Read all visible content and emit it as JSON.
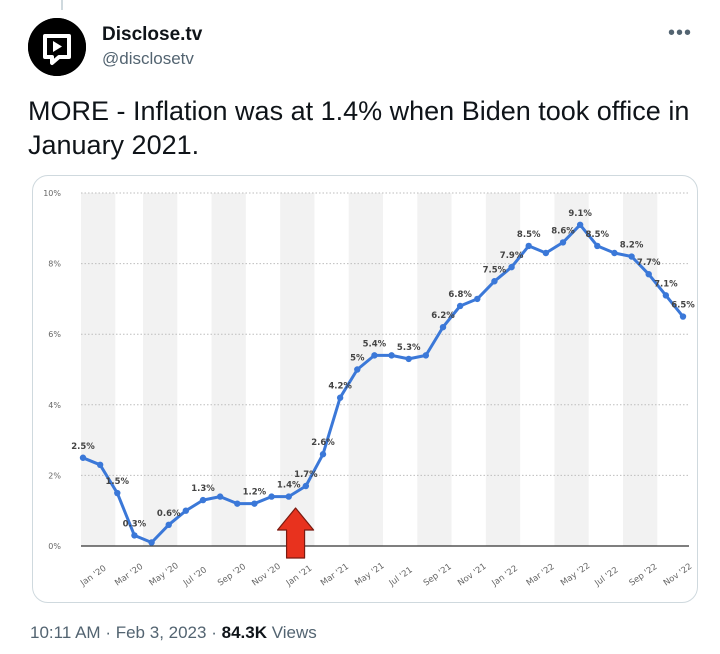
{
  "author": {
    "name": "Disclose.tv",
    "handle": "@disclosetv"
  },
  "tweet": {
    "text": "MORE - Inflation was at 1.4% when Biden took office in January 2021."
  },
  "meta": {
    "time": "10:11 AM",
    "separator1": "·",
    "date": "Feb 3, 2023",
    "separator2": "·",
    "views_count": "84.3K",
    "views_label": "Views"
  },
  "icons": {
    "more": "more-options-icon",
    "avatar": "disclose-logo-icon",
    "arrow": "red-arrow-up-icon"
  },
  "colors": {
    "line": "#3b78d8",
    "arrow": "#e8321e",
    "shade": "#f2f2f2",
    "text_secondary": "#536471"
  },
  "chart_data": {
    "type": "line",
    "ylim": [
      0,
      10
    ],
    "y_ticks": [
      "0%",
      "2%",
      "4%",
      "6%",
      "8%",
      "10%"
    ],
    "x_tick_labels": [
      "Jan '20",
      "Mar '20",
      "May '20",
      "Jul '20",
      "Sep '20",
      "Nov '20",
      "Jan '21",
      "Mar '21",
      "May '21",
      "Jul '21",
      "Sep '21",
      "Nov '21",
      "Jan '22",
      "Mar '22",
      "May '22",
      "Jul '22",
      "Sep '22",
      "Nov '22"
    ],
    "x": [
      "Jan '20",
      "Feb '20",
      "Mar '20",
      "Apr '20",
      "May '20",
      "Jun '20",
      "Jul '20",
      "Aug '20",
      "Sep '20",
      "Oct '20",
      "Nov '20",
      "Dec '20",
      "Jan '21",
      "Feb '21",
      "Mar '21",
      "Apr '21",
      "May '21",
      "Jun '21",
      "Jul '21",
      "Aug '21",
      "Sep '21",
      "Oct '21",
      "Nov '21",
      "Dec '21",
      "Jan '22",
      "Feb '22",
      "Mar '22",
      "Apr '22",
      "May '22",
      "Jun '22",
      "Jul '22",
      "Aug '22",
      "Sep '22",
      "Oct '22",
      "Nov '22",
      "Dec '22"
    ],
    "values": [
      2.5,
      2.3,
      1.5,
      0.3,
      0.1,
      0.6,
      1.0,
      1.3,
      1.4,
      1.2,
      1.2,
      1.4,
      1.4,
      1.7,
      2.6,
      4.2,
      5.0,
      5.4,
      5.4,
      5.3,
      5.4,
      6.2,
      6.8,
      7.0,
      7.5,
      7.9,
      8.5,
      8.3,
      8.6,
      9.1,
      8.5,
      8.3,
      8.2,
      7.7,
      7.1,
      6.5
    ],
    "data_labels": [
      {
        "i": 0,
        "text": "2.5%"
      },
      {
        "i": 2,
        "text": "1.5%"
      },
      {
        "i": 3,
        "text": "0.3%"
      },
      {
        "i": 5,
        "text": "0.6%"
      },
      {
        "i": 7,
        "text": "1.3%"
      },
      {
        "i": 10,
        "text": "1.2%"
      },
      {
        "i": 12,
        "text": "1.4%"
      },
      {
        "i": 13,
        "text": "1.7%"
      },
      {
        "i": 14,
        "text": "2.6%"
      },
      {
        "i": 15,
        "text": "4.2%"
      },
      {
        "i": 16,
        "text": "5%"
      },
      {
        "i": 17,
        "text": "5.4%"
      },
      {
        "i": 19,
        "text": "5.3%"
      },
      {
        "i": 21,
        "text": "6.2%"
      },
      {
        "i": 22,
        "text": "6.8%"
      },
      {
        "i": 24,
        "text": "7.5%"
      },
      {
        "i": 25,
        "text": "7.9%"
      },
      {
        "i": 26,
        "text": "8.5%"
      },
      {
        "i": 28,
        "text": "8.6%"
      },
      {
        "i": 29,
        "text": "9.1%"
      },
      {
        "i": 30,
        "text": "8.5%"
      },
      {
        "i": 32,
        "text": "8.2%"
      },
      {
        "i": 33,
        "text": "7.7%"
      },
      {
        "i": 34,
        "text": "7.1%"
      },
      {
        "i": 35,
        "text": "6.5%"
      }
    ],
    "grid": true,
    "legend": "none"
  }
}
